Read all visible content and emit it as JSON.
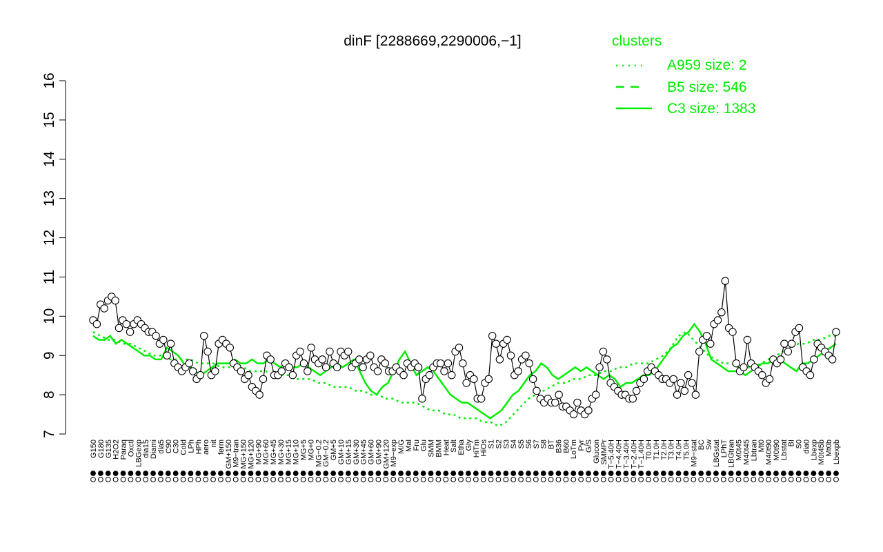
{
  "chart_data": {
    "type": "line",
    "title": "dinF [2288669,2290006,−1]",
    "ylim": [
      7,
      16
    ],
    "yticks": [
      "7",
      "8",
      "9",
      "10",
      "11",
      "12",
      "13",
      "14",
      "15",
      "16"
    ],
    "grid": false,
    "legend": {
      "title": "clusters",
      "placement": "top-right",
      "entries": [
        "A959 size: 2",
        "B5 size: 546",
        "C3 size: 1383"
      ],
      "color": "#00ee00"
    },
    "xticklabels_shown": [
      "G150",
      "G180",
      "G135",
      "H2O2",
      "Paraq",
      "Oxctl",
      "LBGexp",
      "dia15",
      "Diami",
      "dia5",
      "C90",
      "C30",
      "Cold",
      "LPh",
      "HPh",
      "aero",
      "nit",
      "ferm",
      "GM+150",
      "M9−tran",
      "MG+150",
      "MG+120",
      "MG+90",
      "MG+60",
      "MG+45",
      "MG+30",
      "MG+15",
      "MG+10",
      "MG+5",
      "MG+0",
      "MG−0.2",
      "GM−0.2",
      "GM+5",
      "GM+10",
      "GM+15",
      "GM+30",
      "GM+45",
      "GM+60",
      "GM+90",
      "GM+120",
      "M9−exp",
      "M/G",
      "Mal",
      "Fru",
      "Glu",
      "SMM",
      "BMM",
      "Heat",
      "Salt",
      "Etha",
      "Gly",
      "HiTm",
      "HiOs",
      "S1",
      "S2",
      "S3",
      "S4",
      "S5",
      "S6",
      "S7",
      "S8",
      "BT",
      "B36",
      "B60",
      "LoTm",
      "Pyr",
      "G/S",
      "Glucon",
      "SMMPr",
      "T−5.40H",
      "T−4.40H",
      "T−3.40H",
      "T−2.40H",
      "T−1.40H",
      "T0.0H",
      "T1.0H",
      "T2.0H",
      "T3.0H",
      "T4.0H",
      "T5.0H",
      "M9−stat",
      "BC",
      "Sw",
      "LBGstat",
      "LPhT",
      "LBGtran",
      "M0t45",
      "M40t45",
      "Lbtran",
      "Mt0",
      "M40t90",
      "M0t90",
      "Lbstat",
      "BI",
      "S0",
      "dia0",
      "Lbexp",
      "M0t45b",
      "Mt0b",
      "Lbexpb"
    ],
    "series": [
      {
        "values": [
          9.9,
          9.8,
          10.3,
          10.2,
          10.4,
          10.5,
          10.4,
          9.7,
          9.9,
          9.8,
          9.6,
          9.8,
          9.9,
          9.8,
          9.7,
          9.6,
          9.6,
          9.5,
          9.3,
          9.4,
          9.0,
          9.3,
          8.8,
          8.7,
          8.6,
          8.7,
          8.8,
          8.6,
          8.4,
          8.5,
          9.5,
          9.1,
          8.5,
          8.6,
          9.3,
          9.4,
          9.3,
          9.2,
          8.8,
          8.7,
          8.6,
          8.4,
          8.5,
          8.2,
          8.1,
          8.0,
          8.4,
          9.0,
          8.9,
          8.5,
          8.5,
          8.6,
          8.8,
          8.7,
          8.5,
          9.0,
          9.1,
          8.8,
          8.6,
          9.2,
          8.9,
          8.8,
          8.9,
          8.7,
          9.1,
          8.8,
          8.7,
          9.1,
          9.0,
          9.1,
          8.7,
          8.8,
          8.9,
          8.7,
          8.9,
          9.0,
          8.7,
          8.6,
          8.9,
          8.8,
          8.6,
          8.6,
          8.7,
          8.6,
          8.5,
          8.8,
          8.7,
          8.8,
          8.7,
          7.9,
          8.4,
          8.5,
          8.7,
          8.8,
          8.8,
          8.6,
          8.8,
          8.5,
          9.1,
          9.2,
          8.8,
          8.3,
          8.5,
          8.4,
          7.9,
          7.9,
          8.3,
          8.4,
          9.5,
          9.3,
          8.9,
          9.3,
          9.4,
          9.0,
          8.5,
          8.6,
          8.9,
          9.0,
          8.8,
          8.4,
          8.1,
          7.9,
          7.8,
          7.9,
          7.8,
          7.8,
          8.0,
          7.7,
          7.7,
          7.6,
          7.5,
          7.8,
          7.6,
          7.5,
          7.6,
          7.9,
          8.0,
          8.7,
          9.1,
          8.9,
          8.3,
          8.2,
          8.1,
          8.0,
          8.0,
          7.9,
          7.9,
          8.1,
          8.3,
          8.4,
          8.6,
          8.7,
          8.6,
          8.5,
          8.4,
          8.4,
          8.3,
          8.4,
          8.0,
          8.3,
          8.1,
          8.5,
          8.3,
          8.0,
          9.1,
          9.4,
          9.5,
          9.3,
          9.8,
          9.9,
          10.1,
          10.9,
          9.7,
          9.6,
          8.8,
          8.6,
          8.7,
          9.4,
          8.8,
          8.7,
          8.6,
          8.5,
          8.3,
          8.4,
          8.9,
          8.8,
          8.9,
          9.3,
          9.1,
          9.3,
          9.6,
          9.7,
          8.7,
          8.6,
          8.5,
          8.9,
          9.3,
          9.2,
          9.1,
          9.0,
          8.9,
          9.6
        ]
      },
      {
        "values": [
          9.6,
          9.5,
          9.4,
          9.4,
          9.3,
          9.3,
          9.2,
          9.1,
          9.0,
          9.0,
          8.9,
          8.9,
          8.9,
          8.9,
          8.8,
          8.8,
          8.8,
          8.7,
          8.7,
          8.7,
          8.7,
          8.6,
          8.6,
          8.6,
          8.5,
          8.5,
          8.5,
          8.4,
          8.4,
          8.4,
          8.3,
          8.3,
          8.2,
          8.2,
          8.2,
          8.1,
          8.1,
          8.0,
          8.0,
          7.9,
          7.9,
          7.8,
          7.8,
          7.8,
          7.7,
          7.6,
          7.6,
          7.5,
          7.5,
          7.4,
          7.4,
          7.4,
          7.3,
          7.3,
          7.2,
          7.3,
          7.5,
          7.7,
          7.9,
          8.0,
          8.1,
          8.2,
          8.3,
          8.3,
          8.4,
          8.4,
          8.5,
          8.5,
          8.6,
          8.6,
          8.7,
          8.7,
          8.8,
          8.8,
          8.8,
          8.9,
          9.0,
          9.2,
          9.5,
          9.6,
          9.4,
          9.2,
          9.0,
          8.9,
          8.8,
          8.8,
          8.7,
          8.7,
          8.7,
          8.8,
          8.9,
          9.0,
          9.1,
          9.2,
          9.3,
          9.3,
          9.4,
          9.4,
          9.5,
          9.5
        ]
      },
      {
        "values": [
          9.5,
          9.4,
          9.4,
          9.5,
          9.3,
          9.4,
          9.3,
          9.2,
          9.1,
          9.0,
          9.0,
          8.9,
          8.9,
          9.2,
          9.1,
          9.0,
          8.8,
          8.7,
          8.6,
          8.5,
          8.6,
          8.7,
          8.8,
          8.8,
          8.8,
          8.9,
          8.8,
          8.8,
          8.9,
          8.8,
          8.8,
          8.9,
          8.8,
          8.7,
          8.8,
          8.7,
          8.7,
          8.8,
          8.7,
          8.6,
          8.5,
          8.6,
          8.7,
          8.8,
          8.7,
          8.8,
          8.9,
          8.6,
          8.3,
          8.1,
          8.0,
          8.2,
          8.3,
          8.6,
          8.9,
          9.1,
          8.8,
          8.5,
          8.6,
          8.7,
          8.6,
          8.4,
          8.2,
          8.0,
          7.9,
          7.8,
          7.8,
          7.7,
          7.6,
          7.5,
          7.4,
          7.5,
          7.6,
          7.8,
          8.0,
          8.1,
          8.3,
          8.5,
          8.6,
          8.8,
          8.7,
          8.5,
          8.4,
          8.5,
          8.6,
          8.7,
          8.6,
          8.7,
          8.6,
          8.5,
          8.4,
          8.5,
          8.4,
          8.2,
          8.3,
          8.3,
          8.4,
          8.5,
          8.5,
          8.6,
          8.8,
          9.0,
          9.2,
          9.3,
          9.5,
          9.6,
          9.8,
          9.6,
          9.3,
          8.9,
          8.8,
          8.7,
          8.6,
          8.6,
          8.6,
          8.5,
          8.6,
          8.7,
          8.8,
          8.8,
          8.9,
          8.9,
          8.8,
          8.7,
          8.6,
          8.8,
          8.8,
          8.9,
          9.0,
          9.1,
          9.2,
          9.3
        ]
      }
    ]
  }
}
